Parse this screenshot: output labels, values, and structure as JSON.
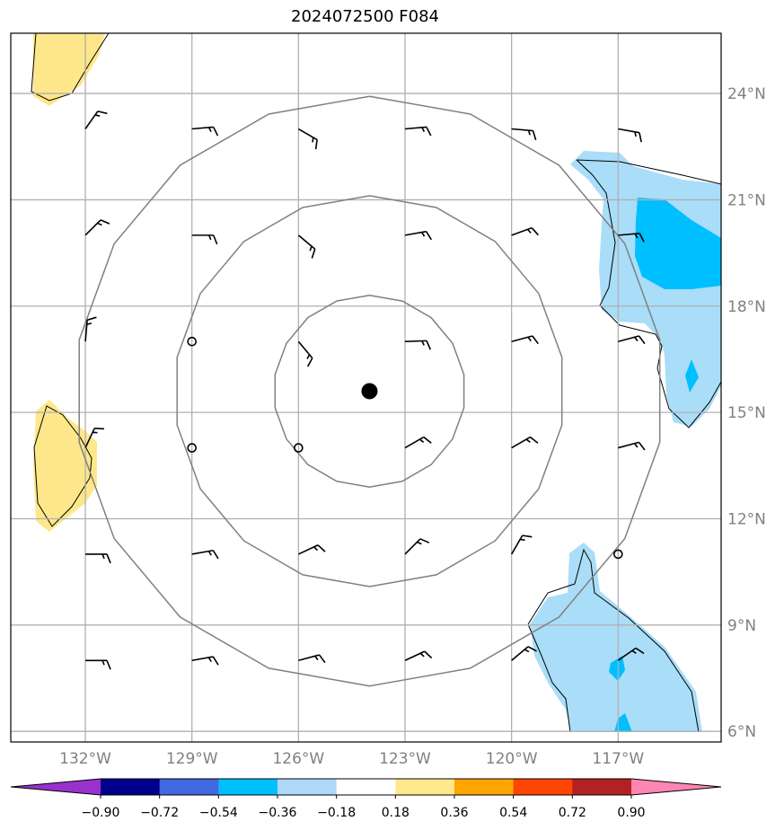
{
  "title": "2024072500 F084",
  "map": {
    "lat_labels": [
      "24°N",
      "21°N",
      "18°N",
      "15°N",
      "12°N",
      "9°N",
      "6°N"
    ],
    "lon_labels": [
      "132°W",
      "129°W",
      "126°W",
      "123°W",
      "120°W",
      "117°W"
    ],
    "lat_values": [
      24,
      21,
      18,
      15,
      12,
      9,
      6
    ],
    "lon_values": [
      -132,
      -129,
      -126,
      -123,
      -120,
      -117
    ],
    "extent": {
      "lon_min": -134.1,
      "lon_max": -114.1,
      "lat_min": 5.7,
      "lat_max": 25.7
    },
    "storm_center": {
      "lon": -124,
      "lat": 15.6
    },
    "range_rings_deg": [
      2.7,
      5.5,
      8.3
    ],
    "colors": {
      "positive_light": "#fde78a",
      "negative_light": "#a9ddf8",
      "negative_mid": "#00bfff",
      "grid": "#b0b0b0",
      "rings": "#808080"
    }
  },
  "colorbar": {
    "tick_labels": [
      "−0.90",
      "−0.72",
      "−0.54",
      "−0.36",
      "−0.18",
      "0.18",
      "0.36",
      "0.54",
      "0.72",
      "0.90"
    ],
    "tick_values": [
      -0.9,
      -0.72,
      -0.54,
      -0.36,
      -0.18,
      0.18,
      0.36,
      0.54,
      0.72,
      0.9
    ],
    "colors": [
      "#9932cc",
      "#00008b",
      "#4169e1",
      "#00bfff",
      "#add8f8",
      "#ffffff",
      "#ffe88a",
      "#ffa500",
      "#ff4500",
      "#b22222",
      "#ff85b3"
    ]
  }
}
